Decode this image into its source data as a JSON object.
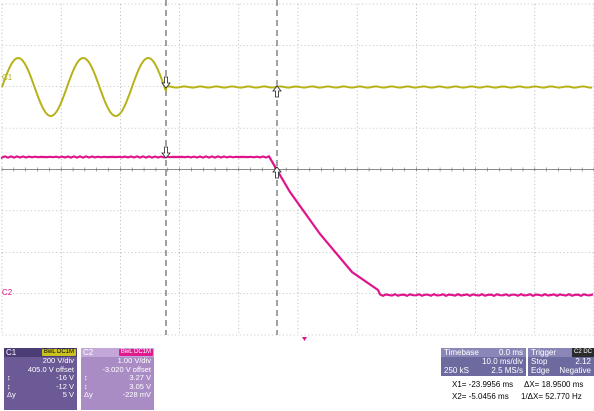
{
  "colors": {
    "background": "#ffffff",
    "grid": "#9a9a9a",
    "channel1": "#b6b21a",
    "channel2": "#e0148a",
    "cursor": "#555555",
    "panel": "#6b5a95",
    "panel_light": "#a98cc4",
    "timebase_panel": "#6d6aa0"
  },
  "display": {
    "channel1_marker": "C1",
    "channel2_marker": "C2",
    "grid_divisions": {
      "horizontal": 10,
      "vertical": 8
    }
  },
  "channels": [
    {
      "name": "C1",
      "badge": "BwL DC1M",
      "rows": [
        {
          "k": "",
          "v": "200 V/div"
        },
        {
          "k": "",
          "v": "405.0 V offset"
        },
        {
          "k": "↕",
          "v": "-16 V"
        },
        {
          "k": "↕",
          "v": "-12 V"
        },
        {
          "k": "Δy",
          "v": "5 V"
        }
      ]
    },
    {
      "name": "C2",
      "badge": "BwL DC1M",
      "rows": [
        {
          "k": "",
          "v": "1.00 V/div"
        },
        {
          "k": "",
          "v": "-3.020 V offset"
        },
        {
          "k": "↕",
          "v": "3.27 V"
        },
        {
          "k": "↕",
          "v": "3.05 V"
        },
        {
          "k": "Δy",
          "v": "-228 mV"
        }
      ]
    }
  ],
  "timebase": {
    "title": "Timebase",
    "delay": "0.0 ms",
    "per_div": "10.0 ms/div",
    "samples": "250 kS",
    "rate": "2.5 MS/s"
  },
  "trigger": {
    "title": "Trigger",
    "badge": "C2 DC",
    "mode": "Stop",
    "level": "2.12",
    "slope_label": "Edge",
    "slope": "Negative"
  },
  "cursors": {
    "x1": "X1= -23.9956 ms",
    "dx": "ΔX= 18.9500 ms",
    "x2": "X2= -5.0456 ms",
    "inv_dx": "1/ΔX= 52.770 Hz"
  }
}
